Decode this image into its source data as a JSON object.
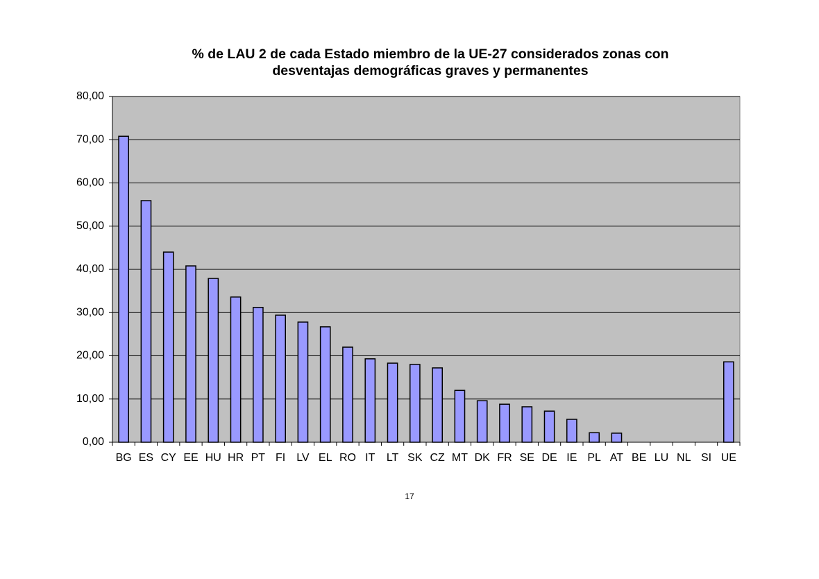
{
  "chart_data": {
    "type": "bar",
    "title": "% de LAU 2 de cada Estado miembro de la UE-27 considerados zonas con desventajas demográficas graves y permanentes",
    "categories": [
      "BG",
      "ES",
      "CY",
      "EE",
      "HU",
      "HR",
      "PT",
      "FI",
      "LV",
      "EL",
      "RO",
      "IT",
      "LT",
      "SK",
      "CZ",
      "MT",
      "DK",
      "FR",
      "SE",
      "DE",
      "IE",
      "PL",
      "AT",
      "BE",
      "LU",
      "NL",
      "SI",
      "UE"
    ],
    "values": [
      70.8,
      55.9,
      44.0,
      40.8,
      37.9,
      33.6,
      31.2,
      29.4,
      27.8,
      26.7,
      22.0,
      19.3,
      18.3,
      18.0,
      17.2,
      12.0,
      9.6,
      8.8,
      8.2,
      7.2,
      5.3,
      2.2,
      2.1,
      0,
      0,
      0,
      0,
      18.6
    ],
    "color": "#9999ff",
    "ylim": [
      0,
      80
    ],
    "yticks": [
      {
        "value": 0,
        "label": "0,00"
      },
      {
        "value": 10,
        "label": "10,00"
      },
      {
        "value": 20,
        "label": "20,00"
      },
      {
        "value": 30,
        "label": "30,00"
      },
      {
        "value": 40,
        "label": "40,00"
      },
      {
        "value": 50,
        "label": "50,00"
      },
      {
        "value": 60,
        "label": "60,00"
      },
      {
        "value": 70,
        "label": "70,00"
      },
      {
        "value": 80,
        "label": "80,00"
      }
    ],
    "grid": true
  },
  "page_number": "17"
}
